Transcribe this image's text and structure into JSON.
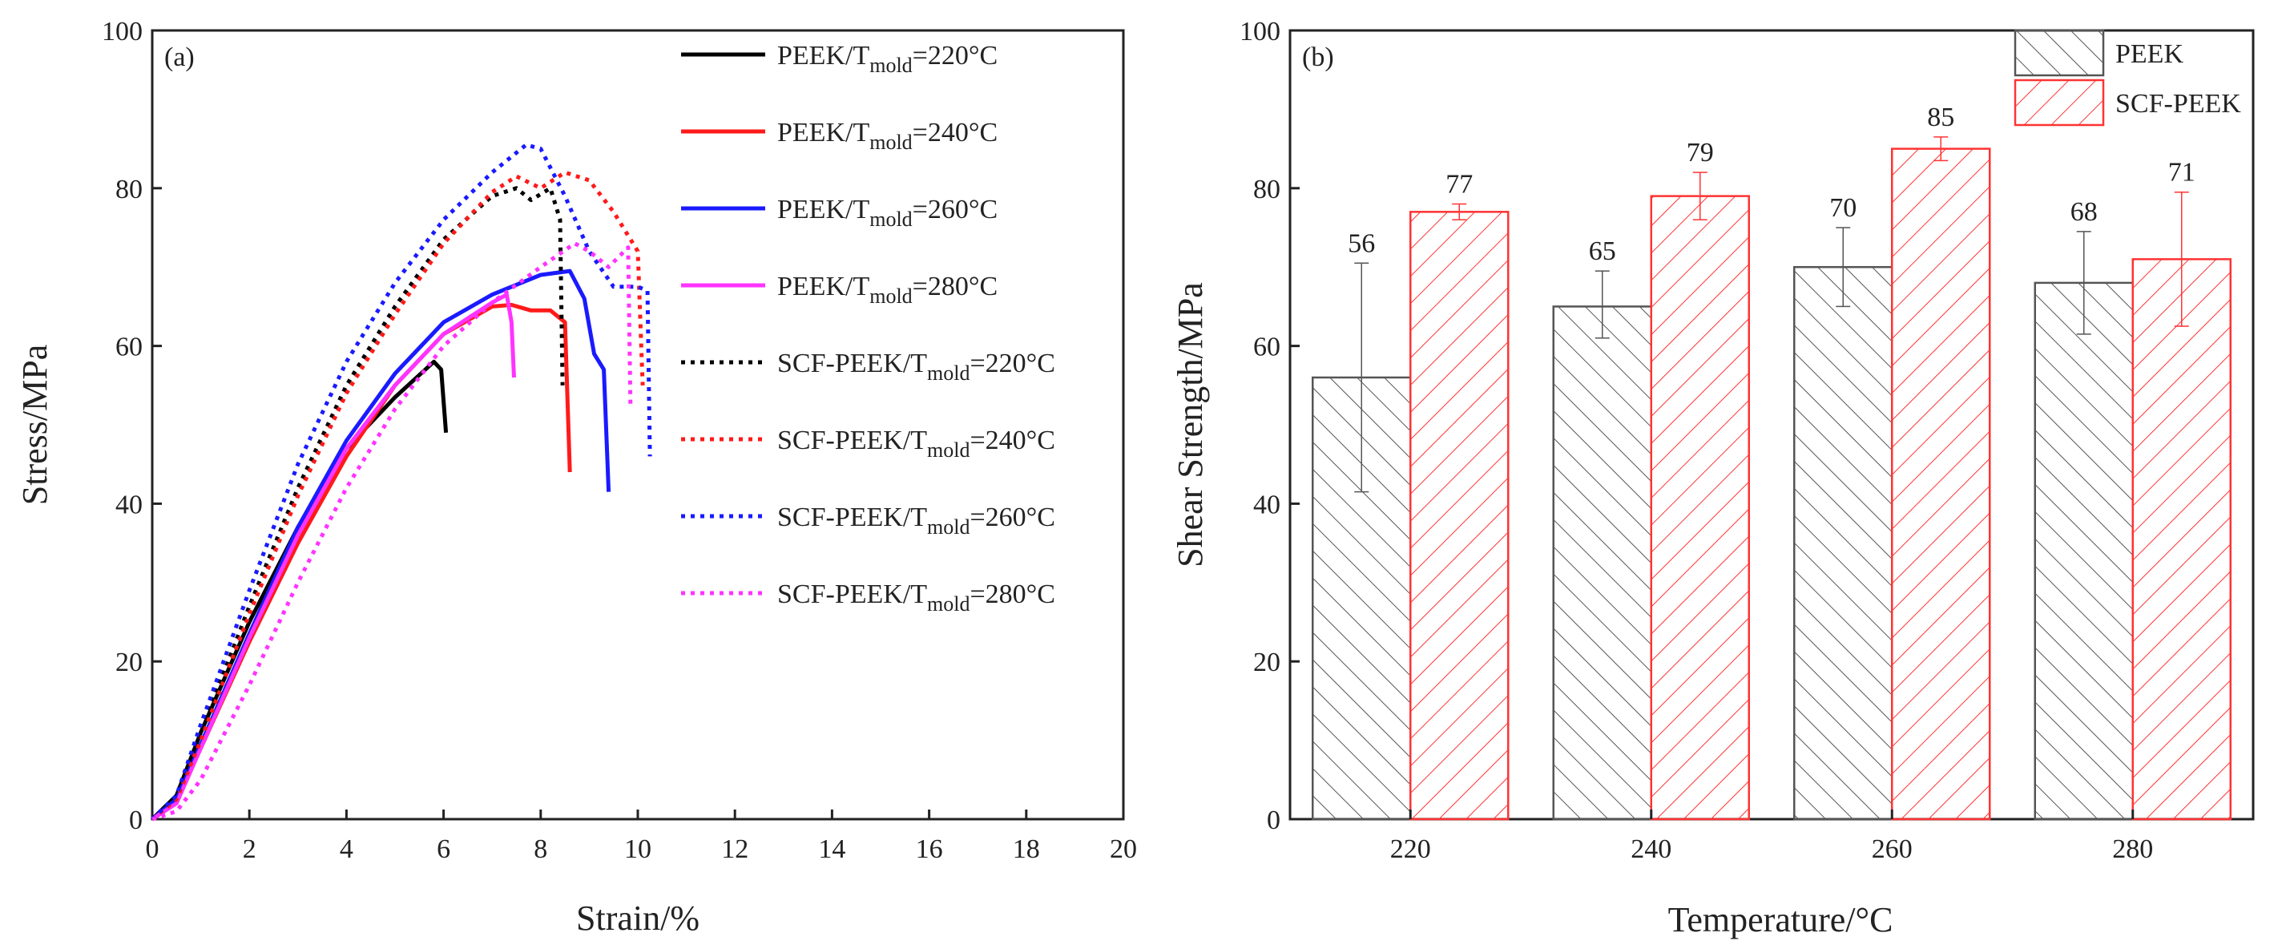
{
  "chart_data": [
    {
      "type": "line",
      "panel_label": "(a)",
      "xlabel": "Strain/%",
      "ylabel": "Stress/MPa",
      "xlim": [
        0,
        20
      ],
      "ylim": [
        0,
        100
      ],
      "xticks": [
        0,
        2,
        4,
        6,
        8,
        10,
        12,
        14,
        16,
        18,
        20
      ],
      "yticks": [
        0,
        20,
        40,
        60,
        80,
        100
      ],
      "legend_position": "top-right",
      "series": [
        {
          "name": "PEEK/T",
          "sub": "mold",
          "suffix": "=220°C",
          "color": "#000000",
          "style": "solid",
          "points": [
            [
              0,
              0
            ],
            [
              0.5,
              3
            ],
            [
              1,
              11
            ],
            [
              2,
              25
            ],
            [
              3,
              37
            ],
            [
              4,
              47
            ],
            [
              5,
              53.5
            ],
            [
              5.8,
              58
            ],
            [
              5.95,
              57
            ],
            [
              6.05,
              49
            ]
          ]
        },
        {
          "name": "PEEK/T",
          "sub": "mold",
          "suffix": "=240°C",
          "color": "#ff1a1a",
          "style": "solid",
          "points": [
            [
              0,
              0
            ],
            [
              0.5,
              2.5
            ],
            [
              1,
              9
            ],
            [
              2,
              22.5
            ],
            [
              3,
              35
            ],
            [
              4,
              46
            ],
            [
              5,
              55
            ],
            [
              6,
              61.5
            ],
            [
              7,
              65
            ],
            [
              7.4,
              65.2
            ],
            [
              7.8,
              64.5
            ],
            [
              8.2,
              64.5
            ],
            [
              8.5,
              63
            ],
            [
              8.6,
              44
            ]
          ]
        },
        {
          "name": "PEEK/T",
          "sub": "mold",
          "suffix": "=260°C",
          "color": "#1a1aff",
          "style": "solid",
          "points": [
            [
              0,
              0
            ],
            [
              0.5,
              2.5
            ],
            [
              1,
              9.5
            ],
            [
              2,
              23.5
            ],
            [
              3,
              37
            ],
            [
              4,
              48
            ],
            [
              5,
              56.5
            ],
            [
              6,
              63
            ],
            [
              7,
              66.5
            ],
            [
              8,
              69
            ],
            [
              8.6,
              69.5
            ],
            [
              8.9,
              66
            ],
            [
              9.1,
              59
            ],
            [
              9.3,
              57
            ],
            [
              9.4,
              41.5
            ]
          ]
        },
        {
          "name": "PEEK/T",
          "sub": "mold",
          "suffix": "=280°C",
          "color": "#ff33ff",
          "style": "solid",
          "points": [
            [
              0,
              0
            ],
            [
              0.5,
              2
            ],
            [
              1,
              9
            ],
            [
              2,
              23
            ],
            [
              3,
              36
            ],
            [
              4,
              47
            ],
            [
              5,
              55
            ],
            [
              6,
              61.5
            ],
            [
              7,
              65.5
            ],
            [
              7.3,
              66.5
            ],
            [
              7.4,
              63
            ],
            [
              7.45,
              56
            ]
          ]
        },
        {
          "name": "SCF-PEEK/T",
          "sub": "mold",
          "suffix": "=220°C",
          "color": "#000000",
          "style": "dotted",
          "points": [
            [
              0,
              0
            ],
            [
              0.5,
              3
            ],
            [
              1,
              11
            ],
            [
              2,
              27
            ],
            [
              3,
              42
            ],
            [
              4,
              55
            ],
            [
              5,
              65
            ],
            [
              6,
              73.5
            ],
            [
              7,
              79
            ],
            [
              7.5,
              80
            ],
            [
              7.8,
              78.5
            ],
            [
              8.2,
              80
            ],
            [
              8.4,
              76
            ],
            [
              8.45,
              55
            ]
          ]
        },
        {
          "name": "SCF-PEEK/T",
          "sub": "mold",
          "suffix": "=240°C",
          "color": "#ff1a1a",
          "style": "dotted",
          "points": [
            [
              0,
              0
            ],
            [
              0.5,
              2.5
            ],
            [
              1,
              10
            ],
            [
              2,
              26
            ],
            [
              3,
              41
            ],
            [
              4,
              54
            ],
            [
              5,
              64
            ],
            [
              6,
              73
            ],
            [
              7,
              79.5
            ],
            [
              7.5,
              81.5
            ],
            [
              8,
              80
            ],
            [
              8.5,
              82
            ],
            [
              9,
              81
            ],
            [
              9.5,
              77
            ],
            [
              10,
              72
            ],
            [
              10.1,
              55
            ]
          ]
        },
        {
          "name": "SCF-PEEK/T",
          "sub": "mold",
          "suffix": "=260°C",
          "color": "#1a1aff",
          "style": "dotted",
          "points": [
            [
              0,
              0
            ],
            [
              0.5,
              3
            ],
            [
              1,
              12
            ],
            [
              2,
              29
            ],
            [
              3,
              45
            ],
            [
              4,
              58
            ],
            [
              5,
              68
            ],
            [
              6,
              76
            ],
            [
              7,
              82
            ],
            [
              7.7,
              85.5
            ],
            [
              8,
              85
            ],
            [
              8.5,
              79
            ],
            [
              9,
              72
            ],
            [
              9.5,
              67.5
            ],
            [
              10,
              67.5
            ],
            [
              10.2,
              67
            ],
            [
              10.25,
              46
            ]
          ]
        },
        {
          "name": "SCF-PEEK/T",
          "sub": "mold",
          "suffix": "=280°C",
          "color": "#ff33ff",
          "style": "dotted",
          "points": [
            [
              0,
              0
            ],
            [
              0.5,
              1
            ],
            [
              1,
              5
            ],
            [
              2,
              17
            ],
            [
              3,
              30
            ],
            [
              4,
              42
            ],
            [
              5,
              52
            ],
            [
              6,
              60
            ],
            [
              7,
              65.5
            ],
            [
              8,
              70
            ],
            [
              8.7,
              73
            ],
            [
              9,
              72
            ],
            [
              9.4,
              70
            ],
            [
              9.8,
              72.5
            ],
            [
              9.85,
              52
            ]
          ]
        }
      ]
    },
    {
      "type": "bar",
      "panel_label": "(b)",
      "xlabel": "Temperature/°C",
      "ylabel": "Shear Strength/MPa",
      "ylim": [
        0,
        100
      ],
      "yticks": [
        0,
        20,
        40,
        60,
        80,
        100
      ],
      "categories": [
        "220",
        "240",
        "260",
        "280"
      ],
      "legend_position": "top-right",
      "series": [
        {
          "name": "PEEK",
          "color": "#555555",
          "values": [
            56,
            65,
            70,
            68
          ],
          "errors": [
            [
              41.5,
              70.5
            ],
            [
              61,
              69.5
            ],
            [
              65,
              75
            ],
            [
              61.5,
              74.5
            ]
          ],
          "labels": [
            "56",
            "65",
            "70",
            "68"
          ]
        },
        {
          "name": "SCF-PEEK",
          "color": "#ff3333",
          "values": [
            77,
            79,
            85,
            71
          ],
          "errors": [
            [
              76,
              78
            ],
            [
              76,
              82
            ],
            [
              83.5,
              86.5
            ],
            [
              62.5,
              79.5
            ]
          ],
          "labels": [
            "77",
            "79",
            "85",
            "71"
          ]
        }
      ]
    }
  ]
}
